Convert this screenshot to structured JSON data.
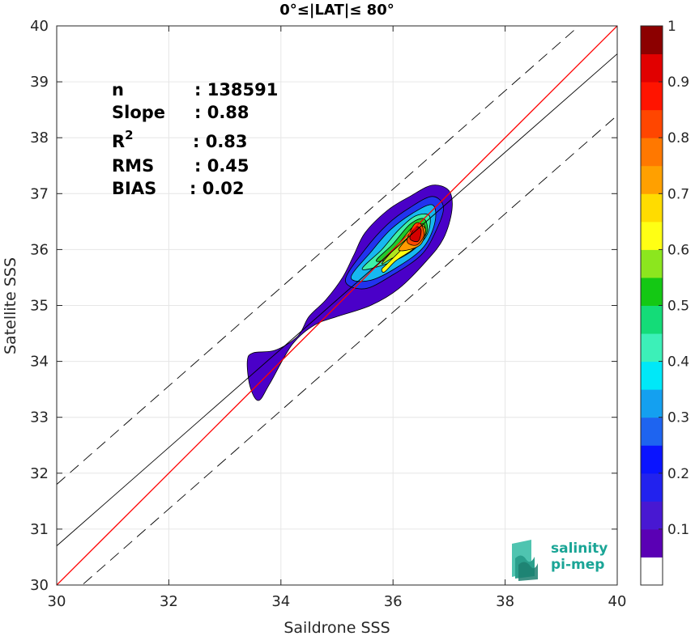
{
  "chart_data": {
    "type": "density-contour-scatter",
    "title": "0°≤|LAT|≤ 80°",
    "xlabel": "Saildrone SSS",
    "ylabel": "Satellite SSS",
    "xlim": [
      30,
      40
    ],
    "ylim": [
      30,
      40
    ],
    "x_ticks": [
      "30",
      "32",
      "34",
      "36",
      "38",
      "40"
    ],
    "y_ticks": [
      "30",
      "31",
      "32",
      "33",
      "34",
      "35",
      "36",
      "37",
      "38",
      "39",
      "40"
    ],
    "grid": true,
    "stats": [
      {
        "key": "n",
        "sup": "",
        "value": ": 138591"
      },
      {
        "key": "Slope",
        "sup": "",
        "value": ": 0.88"
      },
      {
        "key": "R",
        "sup": "2",
        "value": ": 0.83"
      },
      {
        "key": "RMS",
        "sup": "",
        "value": ": 0.45"
      },
      {
        "key": "BIAS",
        "sup": "",
        "value": ": 0.02"
      }
    ],
    "lines": {
      "identity": {
        "slope": 1,
        "intercept": 0,
        "color": "#ff0000"
      },
      "regression": {
        "slope": 0.88,
        "intercept": 4.3,
        "color": "#000000"
      },
      "upper_bound": {
        "slope": 0.88,
        "intercept": 5.4,
        "color": "#000000",
        "dash": true
      },
      "lower_bound": {
        "slope": 0.88,
        "intercept": 3.2,
        "color": "#000000",
        "dash": true
      }
    },
    "density_contours": [
      {
        "level": 0.05,
        "color": "#4a00c8",
        "points": [
          [
            33.4,
            34.0
          ],
          [
            33.5,
            34.15
          ],
          [
            33.9,
            34.2
          ],
          [
            34.3,
            34.45
          ],
          [
            34.5,
            34.8
          ],
          [
            34.8,
            35.1
          ],
          [
            35.1,
            35.5
          ],
          [
            35.3,
            35.9
          ],
          [
            35.5,
            36.3
          ],
          [
            35.9,
            36.7
          ],
          [
            36.3,
            36.95
          ],
          [
            36.7,
            37.15
          ],
          [
            37.0,
            37.05
          ],
          [
            37.05,
            36.7
          ],
          [
            36.9,
            36.2
          ],
          [
            36.6,
            35.8
          ],
          [
            36.1,
            35.3
          ],
          [
            35.6,
            35.0
          ],
          [
            35.0,
            34.8
          ],
          [
            34.6,
            34.65
          ],
          [
            34.2,
            34.3
          ],
          [
            33.8,
            33.6
          ],
          [
            33.6,
            33.3
          ],
          [
            33.45,
            33.55
          ]
        ]
      },
      {
        "level": 0.1,
        "color": "#2233ee",
        "points": [
          [
            35.15,
            35.45
          ],
          [
            35.5,
            36.0
          ],
          [
            35.9,
            36.45
          ],
          [
            36.3,
            36.75
          ],
          [
            36.7,
            36.95
          ],
          [
            36.9,
            36.75
          ],
          [
            36.75,
            36.3
          ],
          [
            36.5,
            35.9
          ],
          [
            36.0,
            35.55
          ],
          [
            35.5,
            35.3
          ]
        ]
      },
      {
        "level": 0.3,
        "color": "#17b8f0",
        "points": [
          [
            35.25,
            35.5
          ],
          [
            35.6,
            35.95
          ],
          [
            35.95,
            36.35
          ],
          [
            36.35,
            36.65
          ],
          [
            36.7,
            36.8
          ],
          [
            36.75,
            36.5
          ],
          [
            36.55,
            36.05
          ],
          [
            36.1,
            35.7
          ],
          [
            35.6,
            35.45
          ]
        ]
      },
      {
        "level": 0.4,
        "color": "#3ef0a8",
        "points": [
          [
            35.45,
            35.65
          ],
          [
            35.8,
            36.0
          ],
          [
            36.1,
            36.35
          ],
          [
            36.4,
            36.6
          ],
          [
            36.65,
            36.6
          ],
          [
            36.6,
            36.25
          ],
          [
            36.3,
            35.95
          ],
          [
            35.9,
            35.75
          ]
        ]
      },
      {
        "level": 0.5,
        "color": "#22c82a",
        "points": [
          [
            35.7,
            35.8
          ],
          [
            36.0,
            36.1
          ],
          [
            36.3,
            36.45
          ],
          [
            36.55,
            36.55
          ],
          [
            36.6,
            36.3
          ],
          [
            36.35,
            36.0
          ],
          [
            36.0,
            35.85
          ]
        ]
      },
      {
        "level": 0.6,
        "color": "#aee61e",
        "points": [
          [
            35.8,
            35.75
          ],
          [
            36.1,
            36.1
          ],
          [
            36.35,
            36.4
          ],
          [
            36.55,
            36.45
          ],
          [
            36.55,
            36.2
          ],
          [
            36.3,
            35.95
          ],
          [
            36.0,
            35.85
          ]
        ]
      },
      {
        "level": 0.65,
        "color": "#ffff10",
        "points": [
          [
            35.8,
            35.65
          ],
          [
            35.9,
            35.75
          ],
          [
            36.2,
            36.05
          ],
          [
            36.45,
            36.35
          ],
          [
            36.55,
            36.2
          ],
          [
            36.35,
            36.0
          ],
          [
            36.05,
            35.8
          ],
          [
            35.85,
            35.6
          ]
        ]
      },
      {
        "level": 0.75,
        "color": "#ff9a00",
        "points": [
          [
            36.1,
            36.0
          ],
          [
            36.3,
            36.25
          ],
          [
            36.45,
            36.45
          ],
          [
            36.58,
            36.35
          ],
          [
            36.5,
            36.1
          ],
          [
            36.3,
            36.0
          ]
        ]
      },
      {
        "level": 0.85,
        "color": "#ff4a00",
        "points": [
          [
            36.25,
            36.15
          ],
          [
            36.38,
            36.45
          ],
          [
            36.5,
            36.45
          ],
          [
            36.55,
            36.25
          ],
          [
            36.42,
            36.08
          ]
        ]
      },
      {
        "level": 0.95,
        "color": "#d40000",
        "points": [
          [
            36.3,
            36.2
          ],
          [
            36.4,
            36.4
          ],
          [
            36.5,
            36.35
          ],
          [
            36.45,
            36.15
          ]
        ]
      }
    ],
    "colorbar": {
      "range": [
        0,
        1
      ],
      "tick_labels": [
        "0.1",
        "0.2",
        "0.3",
        "0.4",
        "0.5",
        "0.6",
        "0.7",
        "0.8",
        "0.9",
        "1"
      ],
      "tick_values": [
        0.1,
        0.2,
        0.3,
        0.4,
        0.5,
        0.6,
        0.7,
        0.8,
        0.9,
        1.0
      ],
      "bands": [
        {
          "from": 0.0,
          "to": 0.05,
          "color": "#ffffff"
        },
        {
          "from": 0.05,
          "to": 0.1,
          "color": "#5a00b4"
        },
        {
          "from": 0.1,
          "to": 0.15,
          "color": "#4818d2"
        },
        {
          "from": 0.15,
          "to": 0.2,
          "color": "#2222ee"
        },
        {
          "from": 0.2,
          "to": 0.25,
          "color": "#0a14ff"
        },
        {
          "from": 0.25,
          "to": 0.3,
          "color": "#1e64f0"
        },
        {
          "from": 0.3,
          "to": 0.35,
          "color": "#14a0f0"
        },
        {
          "from": 0.35,
          "to": 0.4,
          "color": "#00e8f8"
        },
        {
          "from": 0.4,
          "to": 0.45,
          "color": "#3cf0b8"
        },
        {
          "from": 0.45,
          "to": 0.5,
          "color": "#14dc78"
        },
        {
          "from": 0.5,
          "to": 0.55,
          "color": "#14c814"
        },
        {
          "from": 0.55,
          "to": 0.6,
          "color": "#8ce61e"
        },
        {
          "from": 0.6,
          "to": 0.65,
          "color": "#ffff14"
        },
        {
          "from": 0.65,
          "to": 0.7,
          "color": "#ffdc00"
        },
        {
          "from": 0.7,
          "to": 0.75,
          "color": "#ffa000"
        },
        {
          "from": 0.75,
          "to": 0.8,
          "color": "#ff7800"
        },
        {
          "from": 0.8,
          "to": 0.85,
          "color": "#ff4600"
        },
        {
          "from": 0.85,
          "to": 0.9,
          "color": "#ff1400"
        },
        {
          "from": 0.9,
          "to": 0.95,
          "color": "#e10000"
        },
        {
          "from": 0.95,
          "to": 1.0,
          "color": "#8c0000"
        }
      ]
    }
  },
  "logo": {
    "line1": "salinity",
    "line2": "pi-mep",
    "color": "#1aa596"
  }
}
